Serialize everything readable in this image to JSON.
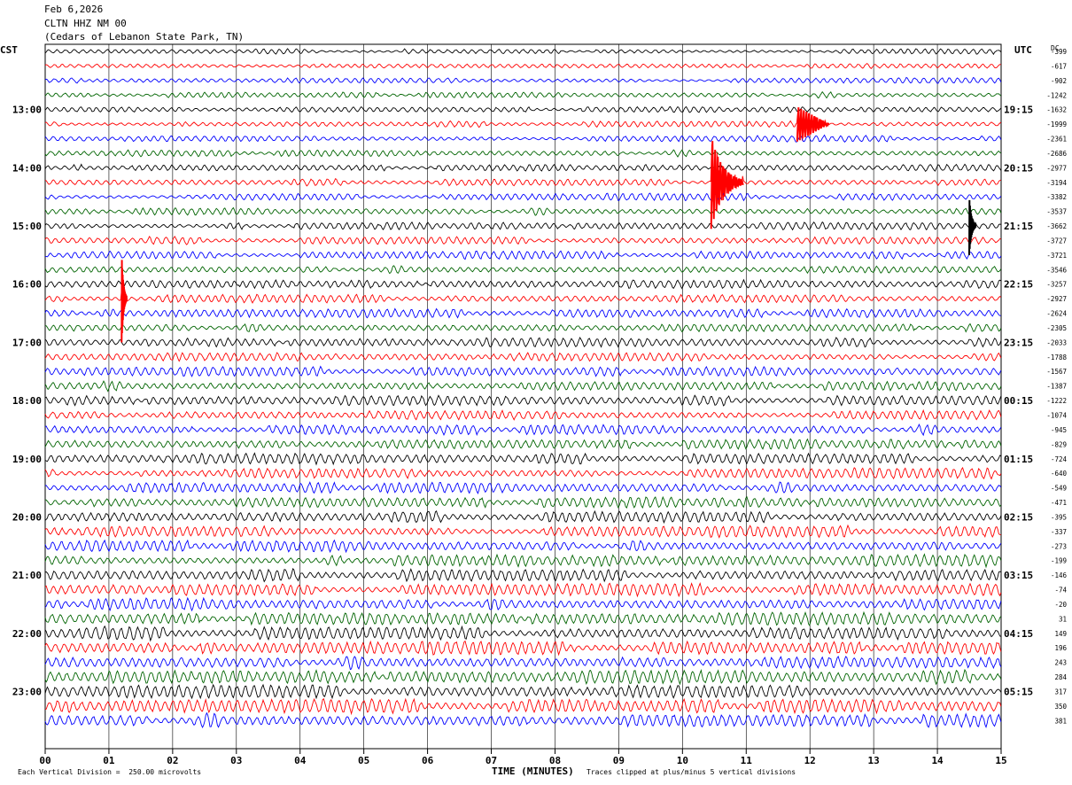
{
  "header": {
    "date": "Feb 6,2026",
    "station": "CLTN HHZ NM 00",
    "location": "(Cedars of Lebanon State Park, TN)"
  },
  "left_zone_label": "CST",
  "right_zone_label": "UTC",
  "dc_label": "DC",
  "footer": {
    "scale": "Each Vertical Division =  250.00 microvolts",
    "xlabel": "TIME (MINUTES)",
    "clip_note": "Traces clipped at plus/minus 5 vertical divisions"
  },
  "chart_data": {
    "type": "line",
    "title": "CLTN HHZ NM 00",
    "xlabel": "TIME (MINUTES)",
    "xlim": [
      0,
      15
    ],
    "x_ticks": [
      "00",
      "01",
      "02",
      "03",
      "04",
      "05",
      "06",
      "07",
      "08",
      "09",
      "10",
      "11",
      "12",
      "13",
      "14",
      "15"
    ],
    "line_minutes": 15,
    "trace_colors": [
      "#000000",
      "#ff0000",
      "#0000ff",
      "#006400"
    ],
    "left_hour_labels": [
      "13:00",
      "14:00",
      "15:00",
      "16:00",
      "17:00",
      "18:00",
      "19:00",
      "20:00",
      "21:00",
      "22:00",
      "23:00"
    ],
    "right_hour_labels": [
      "19:15",
      "20:15",
      "21:15",
      "22:15",
      "23:15",
      "00:15",
      "01:15",
      "02:15",
      "03:15",
      "04:15",
      "05:15"
    ],
    "dc_offsets": [
      "-399",
      "-617",
      "-902",
      "-1242",
      "-1632",
      "-1999",
      "-2361",
      "-2686",
      "-2977",
      "-3194",
      "-3382",
      "-3537",
      "-3662",
      "-3727",
      "-3721",
      "-3546",
      "-3257",
      "-2927",
      "-2624",
      "-2305",
      "-2033",
      "-1788",
      "-1567",
      "-1387",
      "-1222",
      "-1074",
      "-945",
      "-829",
      "-724",
      "-640",
      "-549",
      "-471",
      "-395",
      "-337",
      "-273",
      "-199",
      "-146",
      "-74",
      "-20",
      "31",
      "149",
      "196",
      "243",
      "284",
      "317",
      "350",
      "381"
    ],
    "events": [
      {
        "trace": 5,
        "minute": 11.8,
        "duration_min": 0.5,
        "amplitude_div": 1.2,
        "kind": "burst"
      },
      {
        "trace": 9,
        "minute": 10.45,
        "duration_min": 0.5,
        "amplitude_div": 3.2,
        "kind": "spike"
      },
      {
        "trace": 12,
        "minute": 14.5,
        "duration_min": 0.1,
        "amplitude_div": 2.0,
        "kind": "spike"
      },
      {
        "trace": 17,
        "minute": 1.2,
        "duration_min": 0.08,
        "amplitude_div": 3.0,
        "kind": "spike"
      }
    ]
  }
}
